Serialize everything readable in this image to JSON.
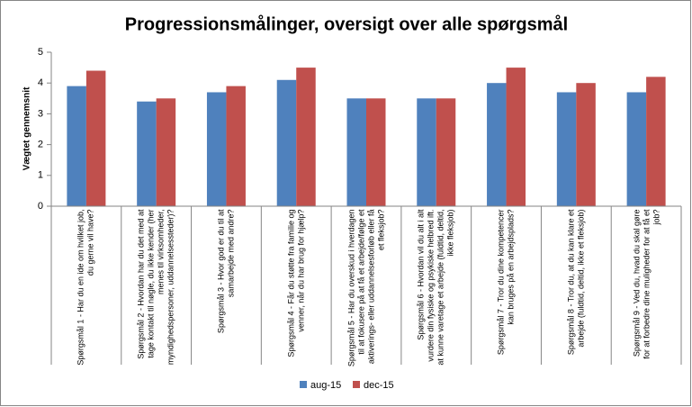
{
  "chart_data": {
    "type": "bar",
    "title": "Progressionsmålinger, oversigt over alle spørgsmål",
    "y_label": "Vægtet gennemsnit",
    "categories": [
      "Spørgsmål 1 - Har du en ide om hvilket job, du gerne vil have?",
      "Spørgsmål 2 - Hvordan har du det med at tage kontakt til nøgle, du ikke kender (her menes til virksomheder, myndighedspersoner, uddannelsessteder)?",
      "Spørgsmål 3 - Hvor god er du til at samarbejde med andre?",
      "Spørgsmål 4 - Får du støtte fra familie og venner, når du har brug for hjælp?",
      "Spørgsmål 5 - Har du overskud i hverdagen til at fokusere på at få et arbejde/følge et aktiverings- eller uddannelsesforløb eller få et fleksjob?",
      "Spørgsmål 6 - Hvordan vil du alt i alt vurdere din fysiske og psykiske helbred ift. at kunne varetage et arbejde (fuldtid, deltid, ikke fleksjob)",
      "Spørgsmål 7 - Tror du dine kompetencer kan bruges på en arbejdsplads?",
      "Spørgsmål 8 - Tror du, at du kan klare et arbejde (fuldtid, deltid, ikke et fleksjob)",
      "Spørgsmål 9 - Ved du, hvad du skal gøre for at forbedre dine muligheder for at få et job?"
    ],
    "series": [
      {
        "name": "aug-15",
        "color": "#4f81bd",
        "values": [
          3.9,
          3.4,
          3.7,
          4.1,
          3.5,
          3.5,
          4.0,
          3.7,
          3.7
        ]
      },
      {
        "name": "dec-15",
        "color": "#c0504d",
        "values": [
          4.4,
          3.5,
          3.9,
          4.5,
          3.5,
          3.5,
          4.5,
          4.0,
          4.2
        ]
      }
    ],
    "ylim": [
      0,
      5
    ],
    "yticks": [
      0,
      1,
      2,
      3,
      4,
      5
    ],
    "grid": false,
    "legend": "bottom"
  }
}
